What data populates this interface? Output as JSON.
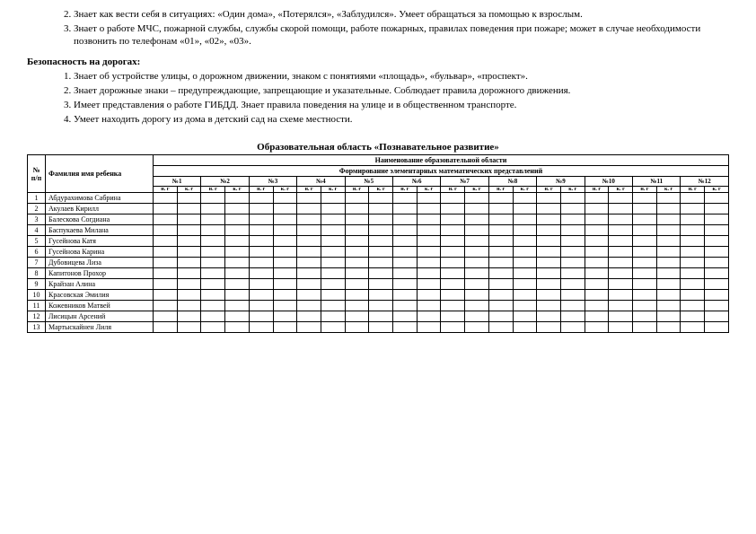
{
  "list1": {
    "items": [
      "Знает как вести себя в ситуациях: «Один дома», «Потерялся», «Заблудился». Умеет обращаться за помощью к взрослым.",
      "Знает о работе МЧС, пожарной службы, службы скорой помощи, работе пожарных, правилах поведения при пожаре; может в случае необходимости позвонить по телефонам «01», «02», «03»."
    ],
    "start": 2
  },
  "heading2": "Безопасность на дорогах:",
  "list2": {
    "items": [
      "Знает об устройстве улицы, о дорожном движении, знаком с понятиями «площадь», «бульвар», «проспект».",
      "Знает дорожные знаки – предупреждающие, запрещающие и указательные. Соблюдает правила дорожного движения.",
      "Имеет представления о работе ГИБДД. Знает правила поведения на улице и в общественном транспорте.",
      "Умеет находить дорогу из дома в детский сад на схеме местности."
    ]
  },
  "tableTitle": "Образовательная область «Познавательное развитие»",
  "table": {
    "colNum": "№ п/п",
    "colName": "Фамилия имя ребенка",
    "hdrArea": "Наименование образовательной области",
    "hdrSub": "Формирование элементарных математических представлений",
    "groups": [
      "№1",
      "№2",
      "№3",
      "№4",
      "№5",
      "№6",
      "№7",
      "№8",
      "№9",
      "№10",
      "№11",
      "№12"
    ],
    "subcols": [
      "н. г",
      "к. г"
    ],
    "students": [
      "Абдурахимова Сабрина",
      "Акулаев Кирилл",
      "Балескова Согдиана",
      "Баспукаева Милана",
      "Гусейнова Катя",
      "Гусейнова Карина",
      "Дубовицева Лиза",
      "Капитонов Прохор",
      "Крайзан Алина",
      "Красовская Эмилия",
      "Кожевников Матвей",
      "Лисицын Арсений",
      "Мартыскайнен Лиля"
    ]
  }
}
